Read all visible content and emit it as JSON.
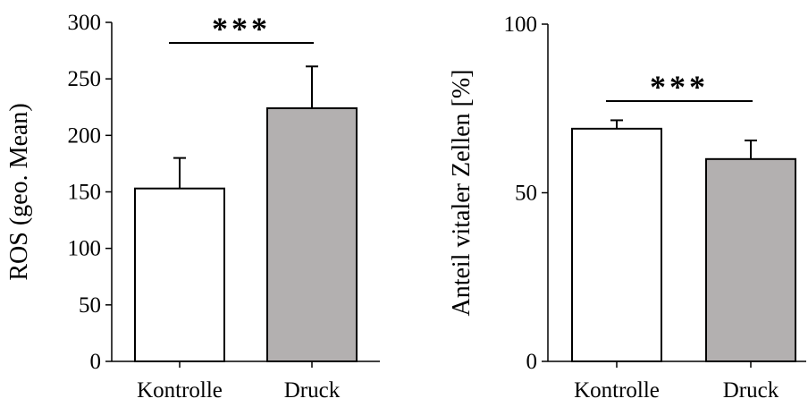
{
  "chart_data": [
    {
      "type": "bar",
      "title": "",
      "xlabel": "",
      "ylabel": "ROS (geo. Mean)",
      "categories": [
        "Kontrolle",
        "Druck"
      ],
      "values": [
        153,
        224
      ],
      "errors": [
        27,
        37
      ],
      "bar_colors": [
        "#ffffff",
        "#b3b0b0"
      ],
      "ylim": [
        0,
        300
      ],
      "yticks": [
        0,
        50,
        100,
        150,
        200,
        250,
        300
      ],
      "grid": false,
      "significance": {
        "between": [
          "Kontrolle",
          "Druck"
        ],
        "label": "***"
      }
    },
    {
      "type": "bar",
      "title": "",
      "xlabel": "",
      "ylabel": "Anteil vitaler Zellen [%]",
      "categories": [
        "Kontrolle",
        "Druck"
      ],
      "values": [
        69,
        60
      ],
      "errors": [
        2.5,
        5.5
      ],
      "bar_colors": [
        "#ffffff",
        "#b3b0b0"
      ],
      "ylim": [
        0,
        100
      ],
      "yticks": [
        0,
        50,
        100
      ],
      "grid": false,
      "significance": {
        "between": [
          "Kontrolle",
          "Druck"
        ],
        "label": "***"
      }
    }
  ]
}
